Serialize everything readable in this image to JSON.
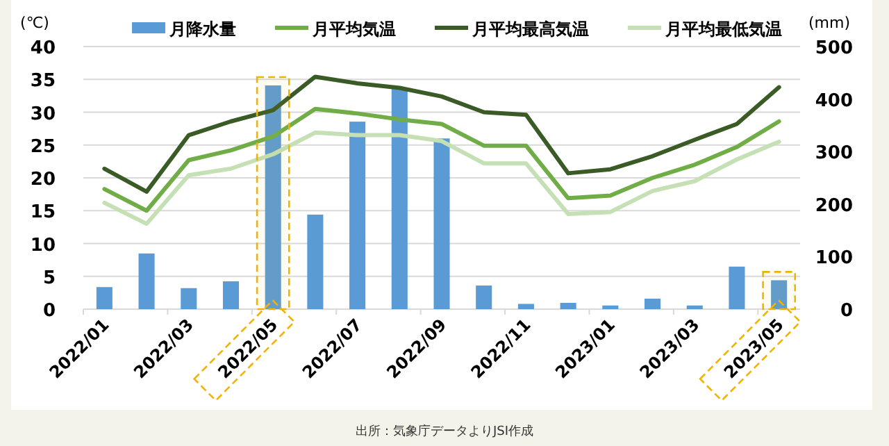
{
  "chart_data": {
    "type": "bar",
    "ylabel": "(℃)",
    "y2label": "(mm)",
    "categories": [
      "2022/01",
      null,
      "2022/03",
      null,
      "2022/05",
      null,
      "2022/07",
      null,
      "2022/09",
      null,
      "2022/11",
      null,
      "2023/01",
      null,
      "2023/03",
      null,
      "2023/05"
    ],
    "series": [
      {
        "name": "月降水量",
        "axis": "y2",
        "color": "#5b9bd5",
        "values": [
          42,
          106,
          40,
          53,
          426,
          180,
          357,
          420,
          325,
          45,
          10,
          12,
          7,
          20,
          7,
          81,
          55
        ]
      },
      {
        "name": "月平均気温",
        "type": "line",
        "color": "#70ad47",
        "values": [
          18.3,
          15.0,
          22.7,
          24.2,
          26.3,
          30.5,
          29.8,
          28.9,
          28.2,
          24.9,
          24.9,
          16.9,
          17.3,
          20.0,
          22.0,
          24.7,
          28.6
        ]
      },
      {
        "name": "月平均最高気温",
        "type": "line",
        "color": "#3a5a26",
        "values": [
          21.4,
          17.9,
          26.5,
          28.6,
          30.3,
          35.4,
          34.4,
          33.7,
          32.4,
          30.0,
          29.6,
          20.7,
          21.3,
          23.3,
          25.8,
          28.2,
          33.8
        ]
      },
      {
        "name": "月平均最低気温",
        "type": "line",
        "color": "#c5e0b4",
        "values": [
          16.2,
          13.0,
          20.4,
          21.4,
          23.6,
          26.9,
          26.5,
          26.5,
          25.6,
          22.2,
          22.2,
          14.5,
          14.8,
          18.0,
          19.5,
          22.8,
          25.5
        ]
      }
    ],
    "ylim": [
      0,
      40
    ],
    "yticks": [
      0,
      5,
      10,
      15,
      20,
      25,
      30,
      35,
      40
    ],
    "y2lim": [
      0,
      500
    ],
    "y2ticks": [
      0,
      100,
      200,
      300,
      400,
      500
    ],
    "grid": "y",
    "legend": "top",
    "bands": [
      {
        "axis": "x",
        "from": "2022/05",
        "to": "2022/05",
        "color": "#f0b400"
      },
      {
        "axis": "x",
        "from": "2023/05",
        "to": "2023/05",
        "color": "#f0b400"
      }
    ],
    "annotations": [
      "出所：気象庁データよりJSI作成"
    ]
  }
}
